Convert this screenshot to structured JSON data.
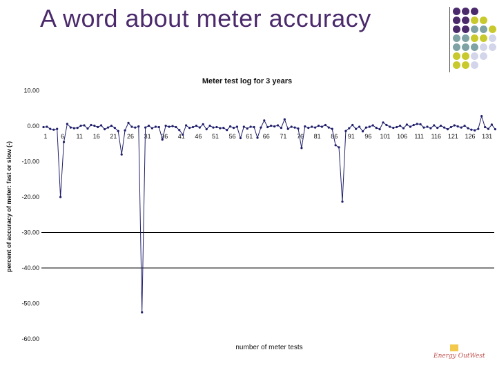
{
  "slide": {
    "title": "A word about meter accuracy",
    "logo_text": "Energy OutWest"
  },
  "decor": {
    "colors": {
      "purple": "#4b2a6b",
      "teal": "#7fa3a5",
      "lime": "#c8c92c",
      "lavender": "#d3d6ea"
    },
    "grid": [
      [
        "purple",
        "purple",
        "purple",
        null,
        null
      ],
      [
        "purple",
        "purple",
        "lime",
        "lime",
        null
      ],
      [
        "purple",
        "purple",
        "teal",
        "teal",
        "lime"
      ],
      [
        "teal",
        "teal",
        "lime",
        "lime",
        "lavender"
      ],
      [
        "teal",
        "teal",
        "teal",
        "lavender",
        "lavender"
      ],
      [
        "lime",
        "lime",
        "lavender",
        "lavender",
        null
      ],
      [
        "lime",
        "lime",
        "lavender",
        null,
        null
      ]
    ]
  },
  "chart_data": {
    "type": "line",
    "title": "Meter test log for 3 years",
    "xlabel": "number of meter tests",
    "ylabel": "percent of accuracy of meter: fast or slow (-)",
    "ylim": [
      -60,
      10
    ],
    "yticks": [
      "10.00",
      "0.00",
      "-10.00",
      "-20.00",
      "-30.00",
      "-40.00",
      "-50.00",
      "-60.00"
    ],
    "xticks": [
      1,
      6,
      11,
      16,
      21,
      26,
      31,
      36,
      41,
      46,
      51,
      56,
      61,
      66,
      71,
      76,
      81,
      86,
      91,
      96,
      101,
      106,
      111,
      116,
      121,
      126,
      131
    ],
    "grid": true,
    "line_color": "#1f1f6b",
    "x": [
      1,
      2,
      3,
      4,
      5,
      6,
      7,
      8,
      9,
      10,
      11,
      12,
      13,
      14,
      15,
      16,
      17,
      18,
      19,
      20,
      21,
      22,
      23,
      24,
      25,
      26,
      27,
      28,
      29,
      30,
      31,
      32,
      33,
      34,
      35,
      36,
      37,
      38,
      39,
      40,
      41,
      42,
      43,
      44,
      45,
      46,
      47,
      48,
      49,
      50,
      51,
      52,
      53,
      54,
      55,
      56,
      57,
      58,
      59,
      60,
      61,
      62,
      63,
      64,
      65,
      66,
      67,
      68,
      69,
      70,
      71,
      72,
      73,
      74,
      75,
      76,
      77,
      78,
      79,
      80,
      81,
      82,
      83,
      84,
      85,
      86,
      87,
      88,
      89,
      90,
      91,
      92,
      93,
      94,
      95,
      96,
      97,
      98,
      99,
      100,
      101,
      102,
      103,
      104,
      105,
      106,
      107,
      108,
      109,
      110,
      111,
      112,
      113,
      114,
      115,
      116,
      117,
      118,
      119,
      120,
      121,
      122,
      123,
      124,
      125,
      126,
      127,
      128,
      129,
      130,
      131,
      132,
      133,
      134
    ],
    "values": [
      -0.3,
      -0.2,
      -0.8,
      -1.0,
      -0.8,
      -20.0,
      -4.5,
      0.6,
      -0.4,
      -0.6,
      -0.5,
      0.1,
      0.2,
      -0.7,
      0.3,
      0.1,
      -0.3,
      0.2,
      -0.9,
      -0.4,
      0.1,
      -0.5,
      -1.4,
      -8.0,
      -1.2,
      0.9,
      -0.2,
      -0.4,
      -0.1,
      -52.5,
      -0.4,
      0.1,
      -0.6,
      -0.2,
      -0.3,
      -3.8,
      0.1,
      -0.2,
      0.0,
      -0.3,
      -1.1,
      -2.4,
      0.2,
      -0.5,
      -0.3,
      0.1,
      -0.4,
      0.5,
      -0.9,
      0.1,
      -0.4,
      -0.3,
      -0.6,
      -0.5,
      -1.1,
      -0.1,
      -0.5,
      -0.2,
      -3.4,
      -0.2,
      -0.7,
      -0.2,
      -0.3,
      -3.3,
      -0.4,
      1.6,
      -0.3,
      0.1,
      -0.1,
      0.2,
      -0.5,
      1.9,
      -0.8,
      -0.2,
      -0.4,
      -0.7,
      -6.2,
      -0.1,
      -0.5,
      -0.2,
      -0.4,
      0.1,
      -0.2,
      0.3,
      -0.4,
      -0.8,
      -5.4,
      -6.0,
      -21.3,
      -1.4,
      -0.6,
      0.3,
      -0.8,
      -0.2,
      -1.5,
      -0.4,
      -0.2,
      0.2,
      -0.5,
      -0.9,
      1.0,
      0.3,
      -0.2,
      -0.5,
      -0.3,
      0.1,
      -0.6,
      0.4,
      -0.2,
      0.3,
      0.6,
      0.5,
      -0.4,
      -0.2,
      -0.6,
      0.2,
      -0.5,
      0.1,
      -0.4,
      -0.9,
      -0.3,
      0.2,
      -0.1,
      -0.4,
      0.1,
      -0.6,
      -1.0,
      -1.2,
      -0.8,
      2.8,
      -0.3,
      -0.8,
      0.4,
      -0.9
    ]
  }
}
